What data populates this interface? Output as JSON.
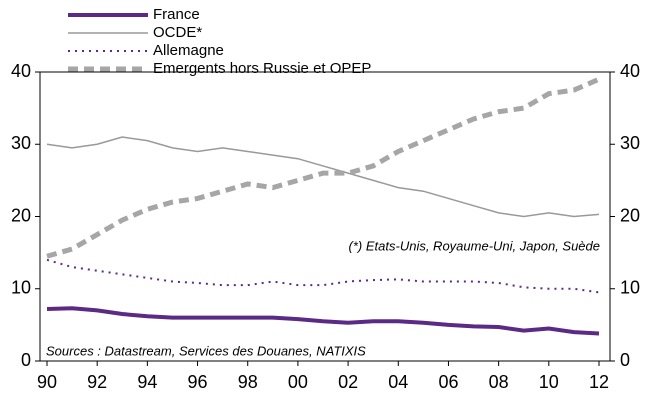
{
  "chart_data": {
    "type": "line",
    "x": [
      1990,
      1991,
      1992,
      1993,
      1994,
      1995,
      1996,
      1997,
      1998,
      1999,
      2000,
      2001,
      2002,
      2003,
      2004,
      2005,
      2006,
      2007,
      2008,
      2009,
      2010,
      2011,
      2012
    ],
    "series": [
      {
        "name": "France",
        "color": "#5b2a86",
        "style": "thick",
        "values": [
          7.2,
          7.3,
          7.0,
          6.5,
          6.2,
          6.0,
          6.0,
          6.0,
          6.0,
          6.0,
          5.8,
          5.5,
          5.3,
          5.5,
          5.5,
          5.3,
          5.0,
          4.8,
          4.7,
          4.2,
          4.5,
          4.0,
          3.8
        ]
      },
      {
        "name": "OCDE*",
        "color": "#999999",
        "style": "thin",
        "values": [
          30,
          29.5,
          30,
          31,
          30.5,
          29.5,
          29,
          29.5,
          29,
          28.5,
          28,
          27,
          26,
          25,
          24,
          23.5,
          22.5,
          21.5,
          20.5,
          20,
          20.5,
          20,
          20.3
        ]
      },
      {
        "name": "Allemagne",
        "color": "#5b2a86",
        "style": "dotted",
        "values": [
          14,
          13,
          12.5,
          12,
          11.5,
          11,
          10.8,
          10.5,
          10.5,
          11,
          10.5,
          10.5,
          11,
          11.2,
          11.3,
          11,
          11,
          11,
          10.8,
          10.2,
          10,
          10,
          9.5
        ]
      },
      {
        "name": "Emergents hors Russie et OPEP",
        "color": "#a6a6a6",
        "style": "dashed",
        "values": [
          14.5,
          15.5,
          17.5,
          19.5,
          21,
          22,
          22.5,
          23.5,
          24.5,
          24,
          25,
          26,
          26,
          27,
          29,
          30.5,
          32,
          33.5,
          34.5,
          35,
          37,
          37.5,
          39
        ]
      }
    ],
    "xlim": [
      1990,
      2012
    ],
    "xticks": [
      {
        "value": 1990,
        "label": "90"
      },
      {
        "value": 1992,
        "label": "92"
      },
      {
        "value": 1994,
        "label": "94"
      },
      {
        "value": 1996,
        "label": "96"
      },
      {
        "value": 1998,
        "label": "98"
      },
      {
        "value": 2000,
        "label": "00"
      },
      {
        "value": 2002,
        "label": "02"
      },
      {
        "value": 2004,
        "label": "04"
      },
      {
        "value": 2006,
        "label": "06"
      },
      {
        "value": 2008,
        "label": "08"
      },
      {
        "value": 2010,
        "label": "10"
      },
      {
        "value": 2012,
        "label": "12"
      }
    ],
    "ylim": [
      0,
      40
    ],
    "yticks": [
      0,
      10,
      20,
      30,
      40
    ],
    "y2lim": [
      0,
      40
    ],
    "y2ticks": [
      0,
      10,
      20,
      30,
      40
    ],
    "annotations": [
      "(*) Etats-Unis, Royaume-Uni, Japon, Suède",
      "Sources : Datastream, Services des  Douanes, NATIXIS"
    ],
    "legend": "top-left"
  }
}
